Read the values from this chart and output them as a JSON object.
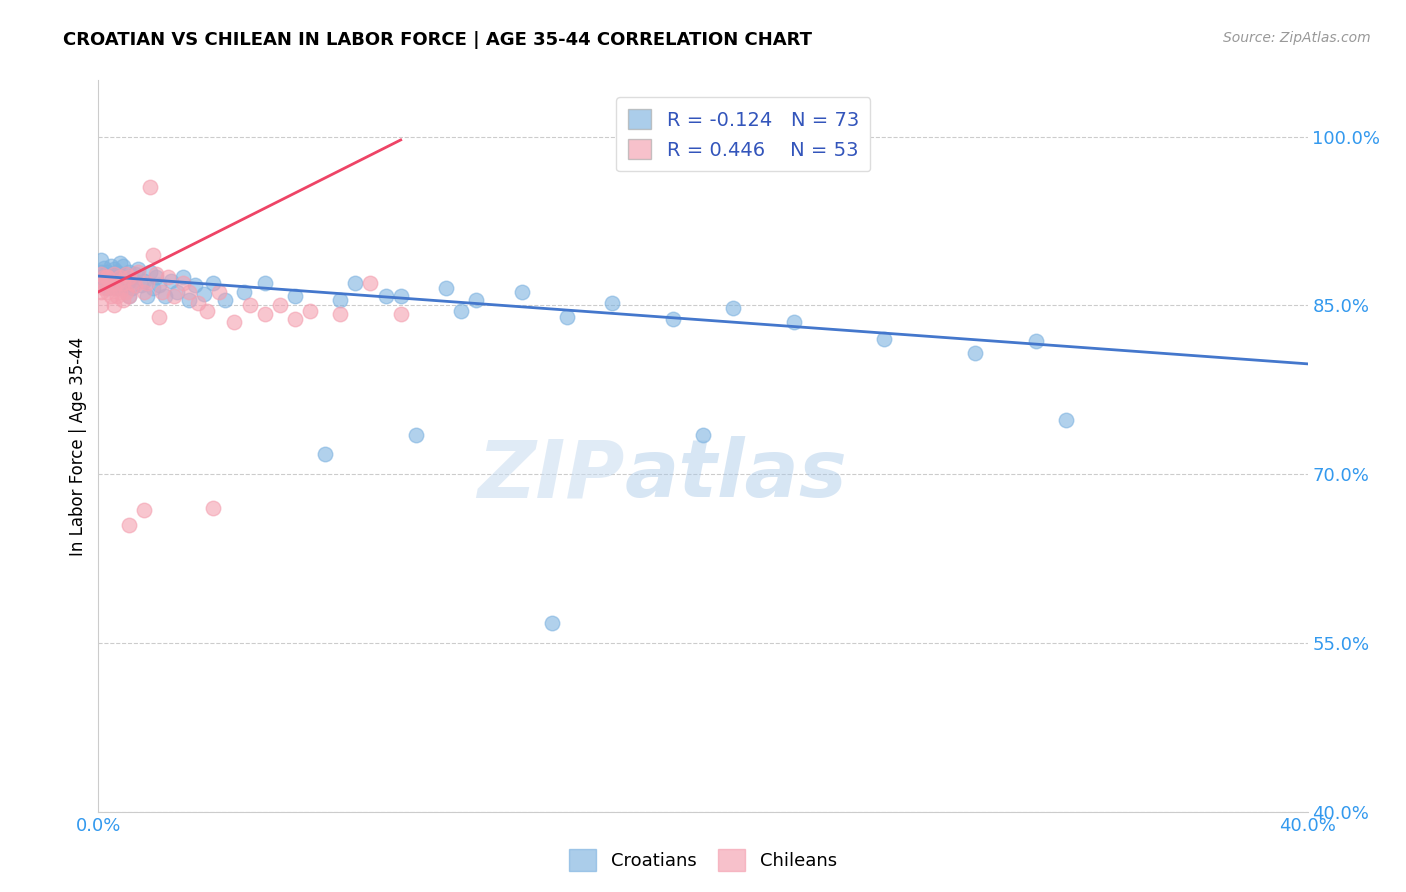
{
  "title": "CROATIAN VS CHILEAN IN LABOR FORCE | AGE 35-44 CORRELATION CHART",
  "source": "Source: ZipAtlas.com",
  "ylabel": "In Labor Force | Age 35-44",
  "xlim": [
    0.0,
    0.4
  ],
  "ylim": [
    0.4,
    1.05
  ],
  "yticks": [
    0.4,
    0.55,
    0.7,
    0.85,
    1.0
  ],
  "yticklabels": [
    "40.0%",
    "55.0%",
    "70.0%",
    "85.0%",
    "100.0%"
  ],
  "watermark_zip": "ZIP",
  "watermark_atlas": "atlas",
  "croatian_color": "#7EB3E0",
  "chilean_color": "#F4A0B0",
  "croatian_line_color": "#4477CC",
  "chilean_line_color": "#EE4466",
  "R_croatian": -0.124,
  "N_croatian": 73,
  "R_chilean": 0.446,
  "N_chilean": 53,
  "croatian_x": [
    0.001,
    0.001,
    0.001,
    0.002,
    0.002,
    0.002,
    0.003,
    0.003,
    0.003,
    0.004,
    0.004,
    0.004,
    0.005,
    0.005,
    0.005,
    0.005,
    0.006,
    0.006,
    0.006,
    0.007,
    0.007,
    0.008,
    0.008,
    0.008,
    0.009,
    0.009,
    0.01,
    0.01,
    0.01,
    0.011,
    0.011,
    0.012,
    0.013,
    0.014,
    0.015,
    0.016,
    0.017,
    0.018,
    0.019,
    0.02,
    0.022,
    0.024,
    0.026,
    0.028,
    0.03,
    0.032,
    0.035,
    0.038,
    0.042,
    0.048,
    0.055,
    0.065,
    0.075,
    0.085,
    0.095,
    0.105,
    0.115,
    0.125,
    0.14,
    0.155,
    0.17,
    0.19,
    0.21,
    0.23,
    0.26,
    0.29,
    0.31,
    0.08,
    0.1,
    0.12,
    0.15,
    0.2,
    0.32
  ],
  "croatian_y": [
    0.875,
    0.88,
    0.89,
    0.872,
    0.883,
    0.868,
    0.88,
    0.874,
    0.865,
    0.877,
    0.87,
    0.885,
    0.875,
    0.868,
    0.882,
    0.87,
    0.876,
    0.865,
    0.88,
    0.875,
    0.888,
    0.873,
    0.885,
    0.867,
    0.875,
    0.868,
    0.88,
    0.872,
    0.858,
    0.875,
    0.865,
    0.878,
    0.882,
    0.868,
    0.872,
    0.858,
    0.88,
    0.865,
    0.875,
    0.868,
    0.858,
    0.872,
    0.862,
    0.875,
    0.855,
    0.868,
    0.86,
    0.87,
    0.855,
    0.862,
    0.87,
    0.858,
    0.718,
    0.87,
    0.858,
    0.735,
    0.865,
    0.855,
    0.862,
    0.84,
    0.852,
    0.838,
    0.848,
    0.835,
    0.82,
    0.808,
    0.818,
    0.855,
    0.858,
    0.845,
    0.568,
    0.735,
    0.748
  ],
  "chilean_x": [
    0.001,
    0.001,
    0.001,
    0.001,
    0.002,
    0.002,
    0.003,
    0.003,
    0.003,
    0.004,
    0.004,
    0.005,
    0.005,
    0.005,
    0.006,
    0.006,
    0.007,
    0.007,
    0.008,
    0.008,
    0.009,
    0.009,
    0.01,
    0.01,
    0.011,
    0.012,
    0.013,
    0.015,
    0.016,
    0.017,
    0.018,
    0.019,
    0.021,
    0.023,
    0.025,
    0.028,
    0.03,
    0.033,
    0.036,
    0.04,
    0.045,
    0.05,
    0.055,
    0.06,
    0.065,
    0.07,
    0.08,
    0.09,
    0.1,
    0.01,
    0.015,
    0.02,
    0.038
  ],
  "chilean_y": [
    0.878,
    0.87,
    0.862,
    0.85,
    0.875,
    0.865,
    0.875,
    0.862,
    0.875,
    0.87,
    0.858,
    0.878,
    0.865,
    0.85,
    0.87,
    0.858,
    0.875,
    0.862,
    0.87,
    0.855,
    0.878,
    0.862,
    0.875,
    0.858,
    0.87,
    0.868,
    0.88,
    0.862,
    0.87,
    0.955,
    0.895,
    0.878,
    0.862,
    0.875,
    0.858,
    0.87,
    0.862,
    0.852,
    0.845,
    0.862,
    0.835,
    0.85,
    0.842,
    0.85,
    0.838,
    0.845,
    0.842,
    0.87,
    0.842,
    0.655,
    0.668,
    0.84,
    0.67
  ],
  "line_cr_x0": 0.0,
  "line_cr_x1": 0.4,
  "line_cr_y0": 0.876,
  "line_cr_y1": 0.798,
  "line_ch_x0": 0.0,
  "line_ch_x1": 0.1,
  "line_ch_y0": 0.862,
  "line_ch_y1": 0.997
}
